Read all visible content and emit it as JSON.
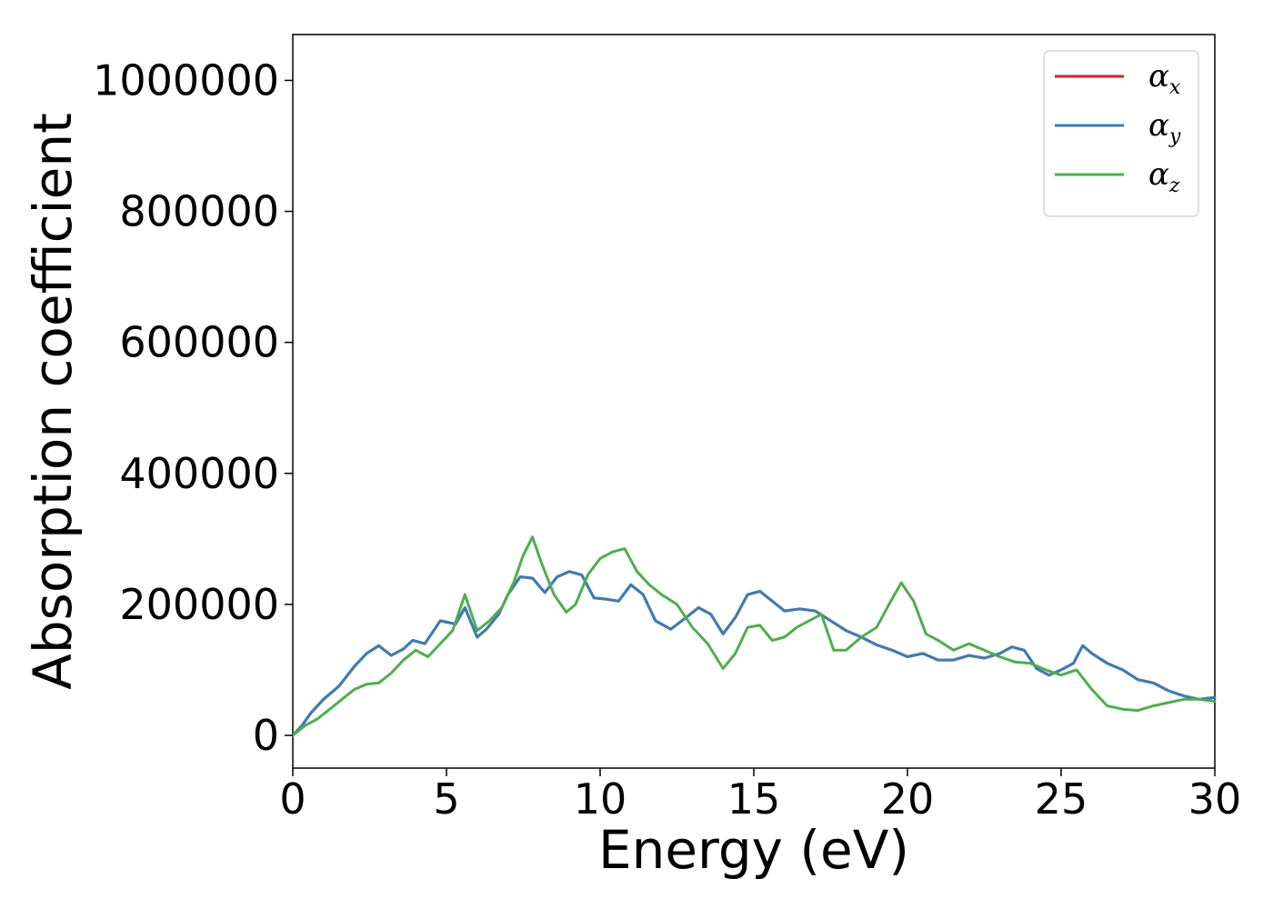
{
  "chart_data": {
    "type": "line",
    "xlabel": "Energy (eV)",
    "ylabel": "Absorption coefficient",
    "xlim": [
      0,
      30
    ],
    "ylim": [
      -50000,
      1070000
    ],
    "x_ticks": [
      0,
      5,
      10,
      15,
      20,
      25,
      30
    ],
    "y_ticks": [
      0,
      200000,
      400000,
      600000,
      800000,
      1000000
    ],
    "x_tick_labels": [
      "0",
      "5",
      "10",
      "15",
      "20",
      "25",
      "30"
    ],
    "y_tick_labels": [
      "0",
      "200000",
      "400000",
      "600000",
      "800000",
      "1000000"
    ],
    "grid": false,
    "legend_position": "top-right",
    "series": [
      {
        "name": "α_x",
        "legend_symbol": "α",
        "legend_sub": "x",
        "color": "#e41a1c",
        "x": [
          0,
          0.3,
          0.6,
          1.0,
          1.5,
          2.0,
          2.4,
          2.8,
          3.2,
          3.6,
          3.9,
          4.3,
          4.8,
          5.3,
          5.6,
          6.0,
          6.3,
          6.7,
          7.0,
          7.4,
          7.8,
          8.2,
          8.6,
          9.0,
          9.4,
          9.8,
          10.2,
          10.6,
          11.0,
          11.4,
          11.8,
          12.3,
          12.8,
          13.2,
          13.6,
          14.0,
          14.4,
          14.8,
          15.2,
          15.6,
          16.0,
          16.5,
          17.0,
          17.5,
          18.0,
          18.5,
          19.0,
          19.5,
          20.0,
          20.5,
          21.0,
          21.5,
          22.0,
          22.5,
          23.0,
          23.4,
          23.8,
          24.2,
          24.6,
          25.0,
          25.4,
          25.7,
          26.0,
          26.5,
          27.0,
          27.5,
          28.0,
          28.5,
          29.0,
          29.5,
          30.0
        ],
        "y": [
          0,
          15000,
          35000,
          55000,
          75000,
          105000,
          125000,
          137000,
          122000,
          132000,
          145000,
          140000,
          175000,
          170000,
          195000,
          150000,
          162000,
          185000,
          215000,
          242000,
          240000,
          218000,
          242000,
          250000,
          245000,
          210000,
          208000,
          205000,
          230000,
          215000,
          175000,
          162000,
          180000,
          195000,
          185000,
          155000,
          180000,
          215000,
          220000,
          205000,
          190000,
          193000,
          190000,
          175000,
          160000,
          150000,
          138000,
          130000,
          120000,
          125000,
          115000,
          115000,
          122000,
          118000,
          125000,
          135000,
          130000,
          102000,
          92000,
          100000,
          110000,
          137000,
          125000,
          110000,
          100000,
          85000,
          80000,
          68000,
          60000,
          55000,
          58000
        ]
      },
      {
        "name": "α_y",
        "legend_symbol": "α",
        "legend_sub": "y",
        "color": "#377eb8",
        "x": [
          0,
          0.3,
          0.6,
          1.0,
          1.5,
          2.0,
          2.4,
          2.8,
          3.2,
          3.6,
          3.9,
          4.3,
          4.8,
          5.3,
          5.6,
          6.0,
          6.3,
          6.7,
          7.0,
          7.4,
          7.8,
          8.2,
          8.6,
          9.0,
          9.4,
          9.8,
          10.2,
          10.6,
          11.0,
          11.4,
          11.8,
          12.3,
          12.8,
          13.2,
          13.6,
          14.0,
          14.4,
          14.8,
          15.2,
          15.6,
          16.0,
          16.5,
          17.0,
          17.5,
          18.0,
          18.5,
          19.0,
          19.5,
          20.0,
          20.5,
          21.0,
          21.5,
          22.0,
          22.5,
          23.0,
          23.4,
          23.8,
          24.2,
          24.6,
          25.0,
          25.4,
          25.7,
          26.0,
          26.5,
          27.0,
          27.5,
          28.0,
          28.5,
          29.0,
          29.5,
          30.0
        ],
        "y": [
          0,
          15000,
          35000,
          55000,
          75000,
          105000,
          125000,
          137000,
          122000,
          132000,
          145000,
          140000,
          175000,
          170000,
          195000,
          150000,
          162000,
          185000,
          215000,
          242000,
          240000,
          218000,
          242000,
          250000,
          245000,
          210000,
          208000,
          205000,
          230000,
          215000,
          175000,
          162000,
          180000,
          195000,
          185000,
          155000,
          180000,
          215000,
          220000,
          205000,
          190000,
          193000,
          190000,
          175000,
          160000,
          150000,
          138000,
          130000,
          120000,
          125000,
          115000,
          115000,
          122000,
          118000,
          125000,
          135000,
          130000,
          102000,
          92000,
          100000,
          110000,
          137000,
          125000,
          110000,
          100000,
          85000,
          80000,
          68000,
          60000,
          55000,
          58000
        ]
      },
      {
        "name": "α_z",
        "legend_symbol": "α",
        "legend_sub": "z",
        "color": "#4daf4a",
        "x": [
          0,
          0.4,
          0.8,
          1.2,
          1.6,
          2.0,
          2.4,
          2.8,
          3.2,
          3.6,
          4.0,
          4.4,
          4.8,
          5.2,
          5.6,
          6.0,
          6.4,
          6.8,
          7.2,
          7.5,
          7.8,
          8.1,
          8.5,
          8.9,
          9.2,
          9.6,
          10.0,
          10.4,
          10.8,
          11.2,
          11.6,
          12.0,
          12.5,
          13.0,
          13.5,
          14.0,
          14.4,
          14.8,
          15.2,
          15.6,
          16.0,
          16.4,
          16.8,
          17.2,
          17.6,
          18.0,
          18.5,
          19.0,
          19.4,
          19.8,
          20.2,
          20.6,
          21.0,
          21.5,
          22.0,
          22.5,
          23.0,
          23.5,
          24.0,
          24.5,
          25.0,
          25.5,
          26.0,
          26.5,
          27.0,
          27.5,
          28.0,
          28.5,
          29.0,
          29.5,
          30.0
        ],
        "y": [
          0,
          15000,
          25000,
          40000,
          55000,
          70000,
          78000,
          80000,
          95000,
          115000,
          130000,
          120000,
          140000,
          160000,
          215000,
          160000,
          175000,
          195000,
          235000,
          275000,
          303000,
          262000,
          215000,
          188000,
          200000,
          245000,
          270000,
          280000,
          285000,
          250000,
          230000,
          215000,
          200000,
          165000,
          140000,
          102000,
          125000,
          165000,
          168000,
          145000,
          150000,
          165000,
          175000,
          185000,
          130000,
          130000,
          150000,
          165000,
          200000,
          233000,
          205000,
          155000,
          145000,
          130000,
          140000,
          130000,
          120000,
          112000,
          110000,
          100000,
          92000,
          100000,
          70000,
          45000,
          40000,
          38000,
          45000,
          50000,
          55000,
          55000,
          52000
        ]
      }
    ]
  }
}
